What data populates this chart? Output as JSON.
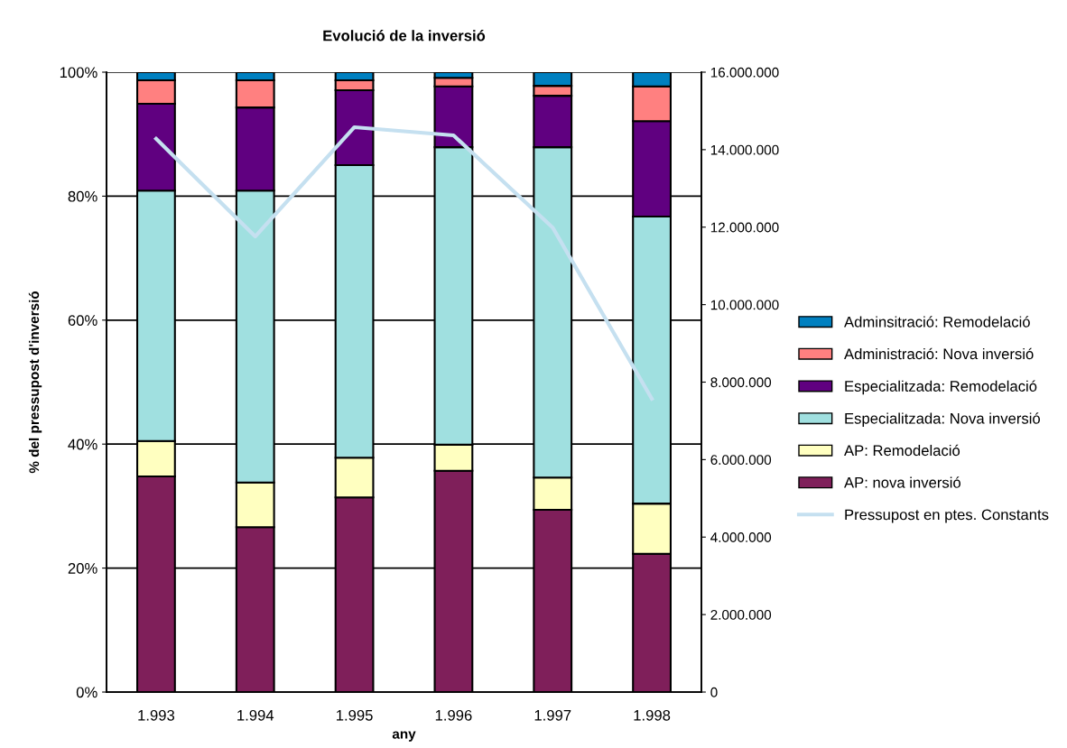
{
  "chart_data": {
    "type": "bar",
    "title": "Evolució de la inversió",
    "xlabel": "any",
    "ylabel": "% del pressupost d'inversió",
    "stacked": true,
    "categories": [
      "1.993",
      "1.994",
      "1.995",
      "1.996",
      "1.997",
      "1.998"
    ],
    "series": [
      {
        "name": "AP: nova inversió",
        "color": "#7f1f5a",
        "values": [
          34.8,
          26.6,
          31.4,
          35.7,
          29.4,
          22.3
        ]
      },
      {
        "name": "AP: Remodelació",
        "color": "#ffffc0",
        "values": [
          5.7,
          7.2,
          6.4,
          4.2,
          5.2,
          8.1
        ]
      },
      {
        "name": "Especialitzada: Nova inversió",
        "color": "#a0e0e0",
        "values": [
          40.4,
          47.1,
          47.2,
          48.0,
          53.3,
          46.3
        ]
      },
      {
        "name": "Especialitzada: Remodelació",
        "color": "#600080",
        "values": [
          14.0,
          13.4,
          12.1,
          9.8,
          8.3,
          15.4
        ]
      },
      {
        "name": "Administració: Nova inversió",
        "color": "#ff8080",
        "values": [
          3.8,
          4.4,
          1.6,
          1.4,
          1.6,
          5.6
        ]
      },
      {
        "name": "Adminsitració: Remodelació",
        "color": "#0080c0",
        "values": [
          1.3,
          1.3,
          1.3,
          0.9,
          2.2,
          2.3
        ]
      },
      {
        "name": "Pressupost en ptes. Constants",
        "type": "line",
        "axis": "y2",
        "color": "#c5e0f0",
        "values": [
          14280000,
          11760000,
          14580000,
          14370000,
          11990000,
          7570000
        ]
      }
    ],
    "ylim": [
      0,
      100
    ],
    "yticks": [
      {
        "value": 0,
        "label": "0%"
      },
      {
        "value": 20,
        "label": "20%"
      },
      {
        "value": 40,
        "label": "40%"
      },
      {
        "value": 60,
        "label": "60%"
      },
      {
        "value": 80,
        "label": "80%"
      },
      {
        "value": 100,
        "label": "100%"
      }
    ],
    "y2lim": [
      0,
      16000000
    ],
    "y2ticks": [
      0,
      {
        "value": 2000000,
        "label": "2.000.000"
      },
      {
        "value": 4000000,
        "label": "4.000.000"
      },
      {
        "value": 6000000,
        "label": "6.000.000"
      },
      {
        "value": 8000000,
        "label": "8.000.000"
      },
      {
        "value": 10000000,
        "label": "10.000.000"
      },
      {
        "value": 12000000,
        "label": "12.000.000"
      },
      {
        "value": 14000000,
        "label": "14.000.000"
      },
      {
        "value": 16000000,
        "label": "16.000.000"
      }
    ],
    "grid": "y",
    "legend": "right"
  }
}
